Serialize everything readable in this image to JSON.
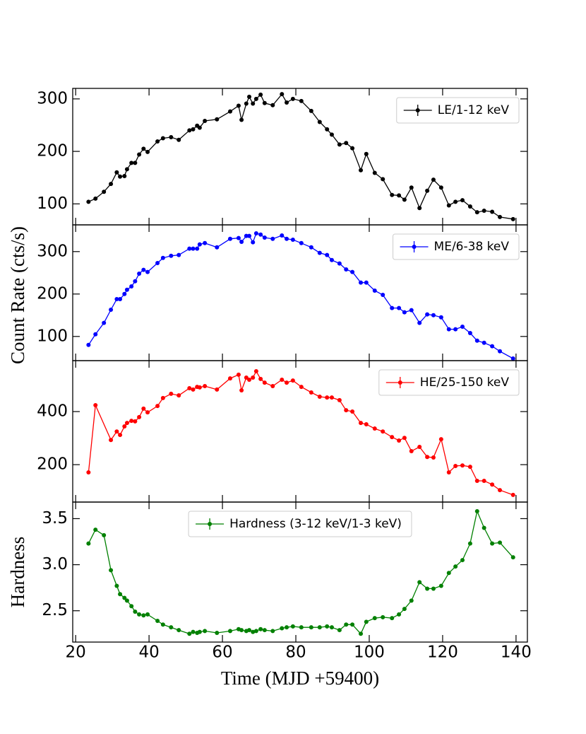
{
  "chart_data": [
    {
      "type": "line",
      "legend": "upper right",
      "xlim": [
        19.2,
        143.1
      ],
      "ylim": [
        60,
        320
      ],
      "yticks": [
        100,
        200,
        300
      ],
      "x": [
        23.5,
        25.4,
        27.7,
        29.6,
        31.2,
        32.1,
        33.3,
        34,
        35.2,
        36.2,
        37.3,
        38.5,
        39.6,
        42.3,
        43.8,
        46,
        48.1,
        51,
        52,
        53.1,
        53.8,
        55.2,
        58.5,
        62.1,
        64.4,
        65.2,
        66.5,
        67.3,
        68.3,
        69.2,
        70.4,
        71.5,
        73.7,
        76.2,
        77.5,
        79.2,
        81.5,
        84.2,
        86.5,
        88.5,
        89.8,
        91.9,
        93.7,
        95.4,
        97.7,
        99.2,
        101.5,
        103.7,
        106.2,
        108.1,
        109.6,
        111.5,
        113.7,
        115.8,
        117.5,
        119.6,
        121.7,
        123.5,
        125.4,
        127.5,
        129.4,
        131.3,
        133.5,
        135.6,
        139.2
      ],
      "series": [
        {
          "name": "LE/1-12 keV",
          "color": "#000000",
          "values": [
            104,
            110,
            123,
            138,
            160,
            152,
            153,
            166,
            178,
            178,
            194,
            205,
            199,
            219,
            225,
            227,
            222,
            240,
            242,
            249,
            245,
            258,
            261,
            276,
            287,
            260,
            291,
            304,
            291,
            300,
            308,
            292,
            288,
            309,
            293,
            300,
            296,
            277,
            256,
            242,
            232,
            213,
            216,
            206,
            164,
            195,
            159,
            147,
            117,
            116,
            108,
            131,
            92,
            125,
            146,
            131,
            97,
            104,
            107,
            95,
            84,
            87,
            85,
            75,
            71
          ]
        }
      ]
    },
    {
      "type": "line",
      "legend": "upper right",
      "ylabel": "Count Rate (cts/s)",
      "xlim": [
        19.2,
        143.1
      ],
      "ylim": [
        43,
        363
      ],
      "yticks": [
        100,
        200,
        300
      ],
      "x": [
        23.5,
        25.4,
        27.7,
        29.6,
        31.2,
        32.1,
        33.3,
        34,
        35.2,
        36.2,
        37.3,
        38.5,
        39.6,
        42.3,
        43.8,
        46,
        48.1,
        51,
        52,
        53.1,
        53.8,
        55.2,
        58.5,
        62.1,
        64.4,
        65.2,
        66.5,
        67.3,
        68.3,
        69.2,
        70.4,
        71.5,
        73.7,
        76.2,
        77.5,
        79.2,
        81.5,
        84.2,
        86.5,
        88.5,
        89.8,
        91.9,
        93.7,
        95.4,
        97.7,
        99.2,
        101.5,
        103.7,
        106.2,
        108.1,
        109.6,
        111.5,
        113.7,
        115.8,
        117.5,
        119.6,
        121.7,
        123.5,
        125.4,
        127.5,
        129.4,
        131.3,
        133.5,
        135.6,
        139.2
      ],
      "series": [
        {
          "name": "ME/6-38 keV",
          "color": "#0000ff",
          "values": [
            80,
            105,
            132,
            163,
            188,
            188,
            200,
            210,
            218,
            230,
            248,
            257,
            252,
            273,
            285,
            290,
            292,
            307,
            307,
            307,
            317,
            320,
            310,
            330,
            332,
            323,
            337,
            337,
            322,
            343,
            340,
            333,
            330,
            338,
            330,
            328,
            320,
            310,
            297,
            292,
            280,
            272,
            258,
            252,
            227,
            227,
            208,
            198,
            167,
            167,
            157,
            162,
            132,
            152,
            150,
            145,
            117,
            117,
            123,
            108,
            90,
            85,
            77,
            65,
            48
          ]
        }
      ]
    },
    {
      "type": "line",
      "legend": "upper right",
      "xlim": [
        19.2,
        143.1
      ],
      "ylim": [
        59,
        592
      ],
      "yticks": [
        200,
        400
      ],
      "x": [
        23.5,
        25.4,
        29.6,
        31.2,
        32.1,
        33.3,
        34,
        35.2,
        36.2,
        37.3,
        38.5,
        39.6,
        42.3,
        43.8,
        46,
        48.1,
        51,
        52,
        53.1,
        53.8,
        55.2,
        58.5,
        62.1,
        64.4,
        65.2,
        66.5,
        67.3,
        68.3,
        69.2,
        70.4,
        71.5,
        73.7,
        76.2,
        77.5,
        79.2,
        81.5,
        84.2,
        86.5,
        88.5,
        89.8,
        91.9,
        93.7,
        95.4,
        97.7,
        99.2,
        101.5,
        103.7,
        106.2,
        108.1,
        109.6,
        111.5,
        113.7,
        115.8,
        117.5,
        119.6,
        121.7,
        123.5,
        125.4,
        127.5,
        129.4,
        131.3,
        133.5,
        135.6,
        139.2
      ],
      "series": [
        {
          "name": "HE/25-150 keV",
          "color": "#ff0000",
          "values": [
            171,
            424,
            293,
            325,
            312,
            344,
            357,
            365,
            363,
            379,
            411,
            397,
            421,
            451,
            467,
            461,
            488,
            483,
            493,
            491,
            496,
            483,
            525,
            539,
            480,
            528,
            520,
            528,
            552,
            523,
            509,
            496,
            520,
            509,
            517,
            493,
            472,
            456,
            453,
            453,
            443,
            405,
            400,
            357,
            352,
            336,
            325,
            304,
            291,
            301,
            251,
            267,
            229,
            227,
            296,
            171,
            195,
            197,
            192,
            139,
            139,
            125,
            104,
            86
          ]
        }
      ]
    },
    {
      "type": "line",
      "legend": "upper center",
      "ylabel": "Hardness",
      "xlabel": "Time (MJD +59400)",
      "xlim": [
        19.2,
        143.1
      ],
      "xticks": [
        20,
        40,
        60,
        80,
        100,
        120,
        140
      ],
      "ylim": [
        2.16,
        3.68
      ],
      "yticks": [
        2.5,
        {
          "value": 3,
          "label": "3.0"
        },
        3.5
      ],
      "x": [
        23.5,
        25.4,
        27.7,
        29.6,
        31.2,
        32.1,
        33.3,
        34,
        35.2,
        36.2,
        37.3,
        38.5,
        39.6,
        42.3,
        43.8,
        46,
        48.1,
        51,
        52,
        53.1,
        53.8,
        55.2,
        58.5,
        62.1,
        64.4,
        65.2,
        66.5,
        67.3,
        68.3,
        69.2,
        70.4,
        71.5,
        73.7,
        76.2,
        77.5,
        79.2,
        81.5,
        84.2,
        86.5,
        88.5,
        89.8,
        91.9,
        93.7,
        95.4,
        97.7,
        99.2,
        101.5,
        103.7,
        106.2,
        108.1,
        109.6,
        111.5,
        113.7,
        115.8,
        117.5,
        119.6,
        121.7,
        123.5,
        125.4,
        127.5,
        129.4,
        131.3,
        133.5,
        135.6,
        139.2
      ],
      "series": [
        {
          "name": "Hardness (3-12 keV/1-3 keV)",
          "color": "#008000",
          "values": [
            3.23,
            3.38,
            3.32,
            2.94,
            2.77,
            2.68,
            2.64,
            2.61,
            2.55,
            2.49,
            2.46,
            2.45,
            2.46,
            2.39,
            2.35,
            2.32,
            2.29,
            2.25,
            2.27,
            2.26,
            2.27,
            2.28,
            2.26,
            2.28,
            2.3,
            2.29,
            2.28,
            2.29,
            2.27,
            2.28,
            2.3,
            2.29,
            2.28,
            2.31,
            2.32,
            2.33,
            2.32,
            2.32,
            2.32,
            2.33,
            2.32,
            2.29,
            2.35,
            2.35,
            2.25,
            2.38,
            2.42,
            2.43,
            2.42,
            2.46,
            2.52,
            2.61,
            2.81,
            2.74,
            2.74,
            2.77,
            2.91,
            2.98,
            3.05,
            3.23,
            3.58,
            3.4,
            3.23,
            3.24,
            3.08
          ]
        }
      ]
    }
  ]
}
